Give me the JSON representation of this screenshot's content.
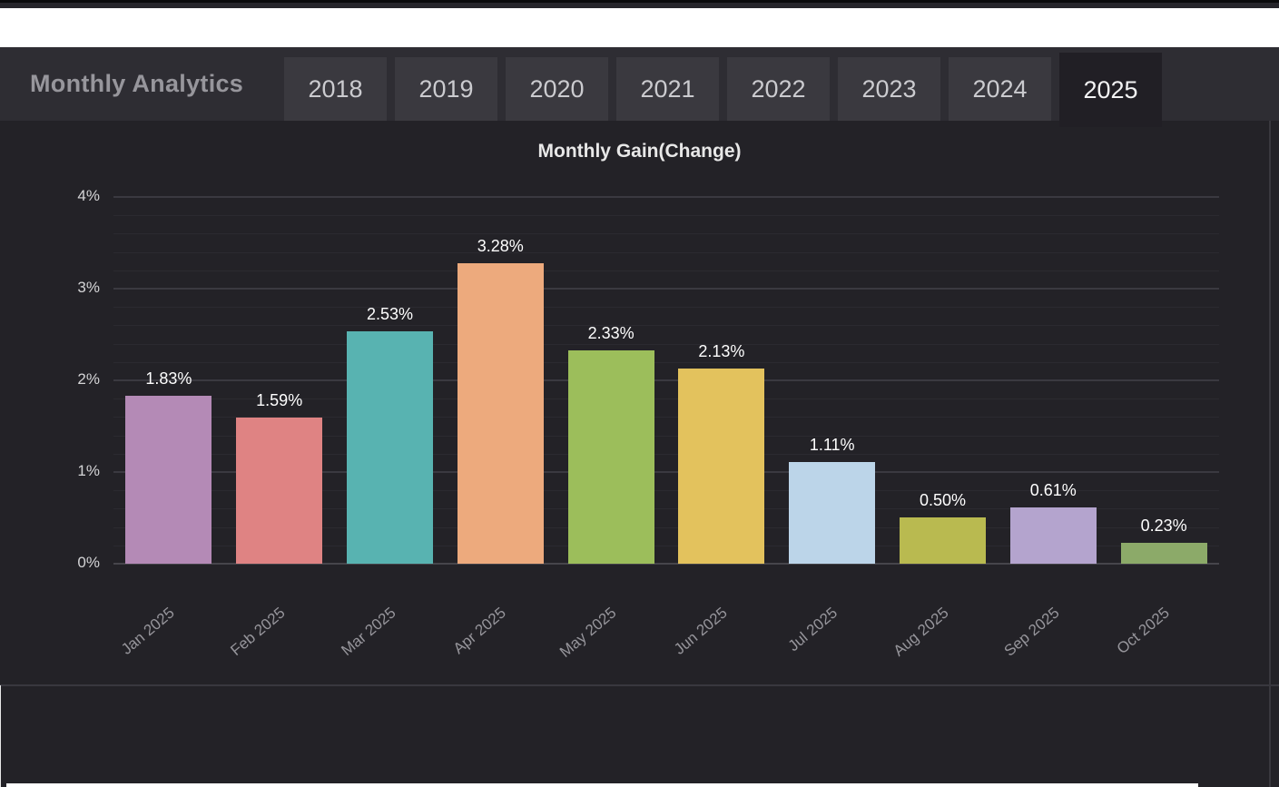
{
  "header": {
    "title": "Monthly Analytics",
    "tabs": [
      {
        "label": "2018",
        "active": false
      },
      {
        "label": "2019",
        "active": false
      },
      {
        "label": "2020",
        "active": false
      },
      {
        "label": "2021",
        "active": false
      },
      {
        "label": "2022",
        "active": false
      },
      {
        "label": "2023",
        "active": false
      },
      {
        "label": "2024",
        "active": false
      },
      {
        "label": "2025",
        "active": true
      }
    ]
  },
  "chart_data": {
    "type": "bar",
    "title": "Monthly Gain(Change)",
    "categories": [
      "Jan 2025",
      "Feb 2025",
      "Mar 2025",
      "Apr 2025",
      "May 2025",
      "Jun 2025",
      "Jul 2025",
      "Aug 2025",
      "Sep 2025",
      "Oct 2025"
    ],
    "values": [
      1.83,
      1.59,
      2.53,
      3.28,
      2.33,
      2.13,
      1.11,
      0.5,
      0.61,
      0.23
    ],
    "value_labels": [
      "1.83%",
      "1.59%",
      "2.53%",
      "3.28%",
      "2.33%",
      "2.13%",
      "1.11%",
      "0.50%",
      "0.61%",
      "0.23%"
    ],
    "bar_colors": [
      "#b48ab6",
      "#df8383",
      "#58b3b1",
      "#edaa7d",
      "#9cbe5b",
      "#e3c25d",
      "#bcd5e9",
      "#b9ba50",
      "#b4a4ce",
      "#8caa69"
    ],
    "y_ticks": [
      "0%",
      "1%",
      "2%",
      "3%",
      "4%"
    ],
    "ylim": [
      0,
      4
    ],
    "minor_tick_step": 0.2,
    "grid": true,
    "legend": "none",
    "xlabel": "",
    "ylabel": ""
  },
  "colors": {
    "topbar_bg": "#26252b",
    "panel_bg": "#232227",
    "header_bg": "#2e2d33",
    "tab_bg": "#3a393f",
    "active_tab_bg": "#211f25",
    "grid_major": "#3a3940",
    "grid_minor": "#2b2a30",
    "axis_line": "#46454b",
    "divider": "#39383e",
    "title_text": "#97969c",
    "tab_text": "#cbcbcf",
    "active_tab_text": "#f3f3f4",
    "chart_title_text": "#e8e8e8",
    "y_tick_text": "#d4d4d6",
    "x_tick_text": "#96959b",
    "value_label_text": "#ffffff"
  }
}
